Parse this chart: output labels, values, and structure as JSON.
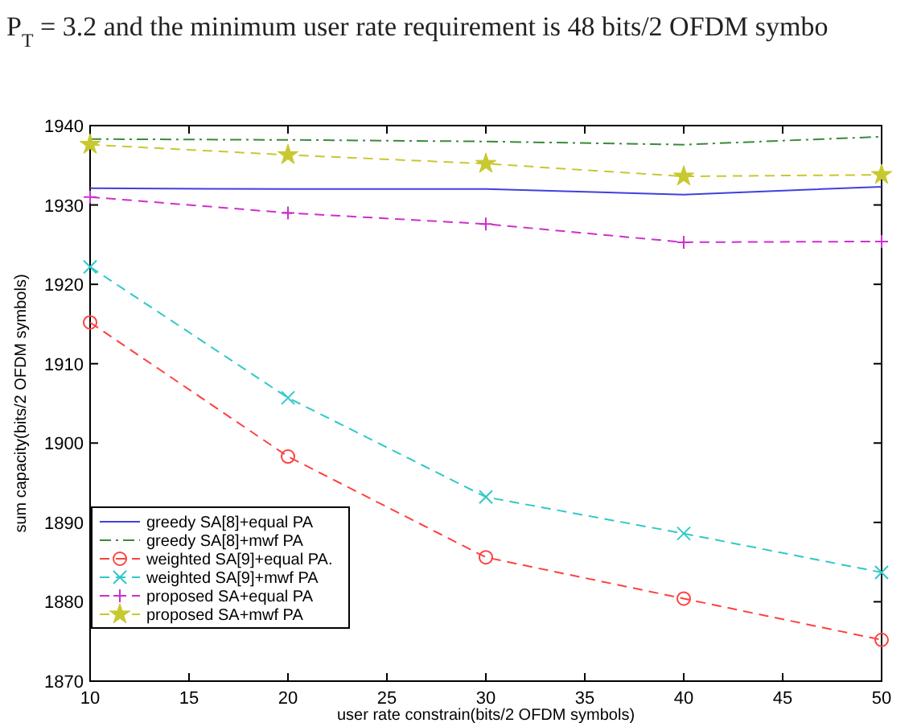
{
  "chart_data": {
    "type": "line",
    "annotations": [
      "P$_{T}$ = 3.2 and the minimum user rate requirement is 48 bits/2 OFDM symbo"
    ],
    "xlabel": "user rate constrain(bits/2 OFDM symbols)",
    "ylabel": "sum capacity(bits/2 OFDM symbols)",
    "x": [
      10,
      20,
      30,
      40,
      50
    ],
    "series": [
      {
        "name": "greedy SA[8]+equal PA",
        "color": "#4040e0",
        "marker": "none",
        "line_style": "solid",
        "values": [
          1932.1,
          1932.0,
          1932.0,
          1931.3,
          1932.3
        ]
      },
      {
        "name": "greedy SA[8]+mwf PA",
        "color": "#3a8a3a",
        "marker": "none",
        "line_style": "dashdot",
        "values": [
          1938.3,
          1938.2,
          1938.0,
          1937.6,
          1938.6
        ]
      },
      {
        "name": "weighted SA[9]+equal PA.",
        "color": "#ff4040",
        "marker": "circle",
        "line_style": "dashed",
        "values": [
          1915.2,
          1898.3,
          1885.6,
          1880.4,
          1875.2
        ]
      },
      {
        "name": "weighted SA[9]+mwf PA",
        "color": "#30c8c8",
        "marker": "cross",
        "line_style": "dashed",
        "values": [
          1922.2,
          1905.7,
          1893.2,
          1888.6,
          1883.7
        ]
      },
      {
        "name": "proposed SA+equal PA",
        "color": "#cc30cc",
        "marker": "plus",
        "line_style": "dashed",
        "values": [
          1931.0,
          1929.0,
          1927.6,
          1925.3,
          1925.4
        ]
      },
      {
        "name": "proposed SA+mwf PA",
        "color": "#c8c830",
        "marker": "star",
        "line_style": "dashed",
        "values": [
          1937.6,
          1936.3,
          1935.2,
          1933.6,
          1933.8
        ]
      }
    ],
    "xlim": [
      10,
      50
    ],
    "xticks": [
      10,
      15,
      20,
      25,
      30,
      35,
      40,
      45,
      50
    ],
    "ylim": [
      1870,
      1940
    ],
    "yticks": [
      1870,
      1880,
      1890,
      1900,
      1910,
      1920,
      1930,
      1940
    ],
    "grid": false,
    "legend": "bottom left"
  }
}
